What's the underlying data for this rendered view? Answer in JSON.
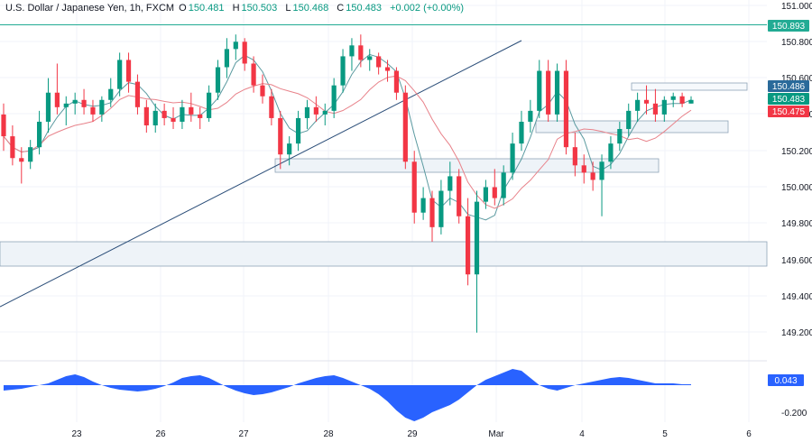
{
  "header": {
    "symbol": "U.S. Dollar / Japanese Yen, 1h, FXCM",
    "open_label": "O",
    "open": "150.481",
    "high_label": "H",
    "high": "150.503",
    "low_label": "L",
    "low": "150.468",
    "close_label": "C",
    "close": "150.483",
    "change": "+0.002 (+0.00%)"
  },
  "colors": {
    "up": "#089981",
    "down": "#f23645",
    "ma_fast": "#5b9aa0",
    "ma_slow": "#e8828a",
    "trendline": "#2a4d78",
    "histogram": "#2962ff",
    "level_line": "#22ab94",
    "zone_border": "#8fa4b8",
    "zone_fill": "#eef3f8"
  },
  "chart_data": {
    "type": "candlestick",
    "title": "U.S. Dollar / Japanese Yen, 1h, FXCM",
    "x_ticks": [
      "23",
      "26",
      "27",
      "28",
      "29",
      "Mar",
      "4",
      "5",
      "6"
    ],
    "y_ticks": [
      "151.000",
      "150.800",
      "150.600",
      "150.400",
      "150.200",
      "150.000",
      "149.800",
      "149.600",
      "149.400",
      "149.200"
    ],
    "ylim": [
      149.13,
      151.03
    ],
    "price_labels": [
      {
        "text": "150.893",
        "color": "#22ab94"
      },
      {
        "text": "150.486",
        "color": "#2a6a9a"
      },
      {
        "text": "150.483",
        "color": "#089981"
      },
      {
        "text": "150.475",
        "color": "#f23645"
      }
    ],
    "oscillator": {
      "value_label": "0.043",
      "ticks": [
        "-0.200"
      ]
    },
    "levels": [
      150.893
    ],
    "candles_ohlc": [
      [
        150.4,
        150.46,
        150.2,
        150.28
      ],
      [
        150.28,
        150.34,
        150.12,
        150.16
      ],
      [
        150.16,
        150.22,
        150.02,
        150.14
      ],
      [
        150.14,
        150.26,
        150.1,
        150.22
      ],
      [
        150.22,
        150.42,
        150.18,
        150.36
      ],
      [
        150.36,
        150.6,
        150.3,
        150.52
      ],
      [
        150.52,
        150.68,
        150.4,
        150.44
      ],
      [
        150.44,
        150.5,
        150.34,
        150.46
      ],
      [
        150.46,
        150.52,
        150.4,
        150.48
      ],
      [
        150.48,
        150.54,
        150.4,
        150.44
      ],
      [
        150.44,
        150.48,
        150.36,
        150.4
      ],
      [
        150.4,
        150.5,
        150.36,
        150.48
      ],
      [
        150.48,
        150.6,
        150.44,
        150.54
      ],
      [
        150.54,
        150.74,
        150.5,
        150.7
      ],
      [
        150.7,
        150.74,
        150.52,
        150.58
      ],
      [
        150.58,
        150.62,
        150.4,
        150.44
      ],
      [
        150.44,
        150.48,
        150.3,
        150.34
      ],
      [
        150.34,
        150.46,
        150.3,
        150.42
      ],
      [
        150.42,
        150.46,
        150.34,
        150.38
      ],
      [
        150.38,
        150.44,
        150.32,
        150.36
      ],
      [
        150.36,
        150.48,
        150.32,
        150.44
      ],
      [
        150.44,
        150.52,
        150.36,
        150.4
      ],
      [
        150.4,
        150.44,
        150.32,
        150.38
      ],
      [
        150.38,
        150.56,
        150.36,
        150.52
      ],
      [
        150.52,
        150.7,
        150.48,
        150.66
      ],
      [
        150.66,
        150.82,
        150.6,
        150.76
      ],
      [
        150.76,
        150.84,
        150.7,
        150.8
      ],
      [
        150.8,
        150.82,
        150.64,
        150.68
      ],
      [
        150.68,
        150.72,
        150.52,
        150.56
      ],
      [
        150.56,
        150.62,
        150.46,
        150.5
      ],
      [
        150.5,
        150.54,
        150.34,
        150.38
      ],
      [
        150.38,
        150.42,
        150.1,
        150.18
      ],
      [
        150.18,
        150.28,
        150.12,
        150.24
      ],
      [
        150.24,
        150.42,
        150.2,
        150.38
      ],
      [
        150.38,
        150.48,
        150.32,
        150.44
      ],
      [
        150.44,
        150.5,
        150.36,
        150.4
      ],
      [
        150.4,
        150.46,
        150.34,
        150.42
      ],
      [
        150.42,
        150.6,
        150.38,
        150.56
      ],
      [
        150.56,
        150.76,
        150.52,
        150.72
      ],
      [
        150.72,
        150.82,
        150.64,
        150.78
      ],
      [
        150.78,
        150.84,
        150.66,
        150.7
      ],
      [
        150.7,
        150.76,
        150.64,
        150.72
      ],
      [
        150.72,
        150.74,
        150.62,
        150.66
      ],
      [
        150.66,
        150.7,
        150.58,
        150.64
      ],
      [
        150.64,
        150.66,
        150.48,
        150.52
      ],
      [
        150.52,
        150.56,
        150.1,
        150.14
      ],
      [
        150.14,
        150.2,
        149.8,
        149.86
      ],
      [
        149.86,
        150.0,
        149.82,
        149.94
      ],
      [
        149.94,
        149.98,
        149.7,
        149.78
      ],
      [
        149.78,
        150.04,
        149.74,
        149.98
      ],
      [
        149.98,
        150.14,
        149.9,
        150.06
      ],
      [
        150.06,
        150.1,
        149.8,
        149.84
      ],
      [
        149.84,
        149.94,
        149.46,
        149.52
      ],
      [
        149.52,
        149.98,
        149.2,
        149.92
      ],
      [
        149.92,
        150.04,
        149.88,
        150.0
      ],
      [
        150.0,
        150.1,
        149.9,
        149.94
      ],
      [
        149.94,
        150.12,
        149.9,
        150.08
      ],
      [
        150.08,
        150.3,
        150.04,
        150.24
      ],
      [
        150.24,
        150.42,
        150.2,
        150.36
      ],
      [
        150.36,
        150.48,
        150.3,
        150.42
      ],
      [
        150.42,
        150.7,
        150.38,
        150.64
      ],
      [
        150.64,
        150.7,
        150.36,
        150.4
      ],
      [
        150.4,
        150.68,
        150.36,
        150.64
      ],
      [
        150.64,
        150.7,
        150.18,
        150.22
      ],
      [
        150.22,
        150.3,
        150.06,
        150.12
      ],
      [
        150.12,
        150.18,
        150.02,
        150.08
      ],
      [
        150.08,
        150.14,
        149.98,
        150.04
      ],
      [
        150.04,
        150.18,
        149.84,
        150.14
      ],
      [
        150.14,
        150.28,
        150.1,
        150.24
      ],
      [
        150.24,
        150.36,
        150.2,
        150.32
      ],
      [
        150.32,
        150.46,
        150.28,
        150.42
      ],
      [
        150.42,
        150.52,
        150.36,
        150.48
      ],
      [
        150.48,
        150.56,
        150.4,
        150.46
      ],
      [
        150.46,
        150.54,
        150.36,
        150.4
      ],
      [
        150.4,
        150.5,
        150.36,
        150.48
      ],
      [
        150.48,
        150.52,
        150.44,
        150.5
      ],
      [
        150.5,
        150.52,
        150.44,
        150.46
      ],
      [
        150.46,
        150.5,
        150.46,
        150.48
      ]
    ]
  }
}
